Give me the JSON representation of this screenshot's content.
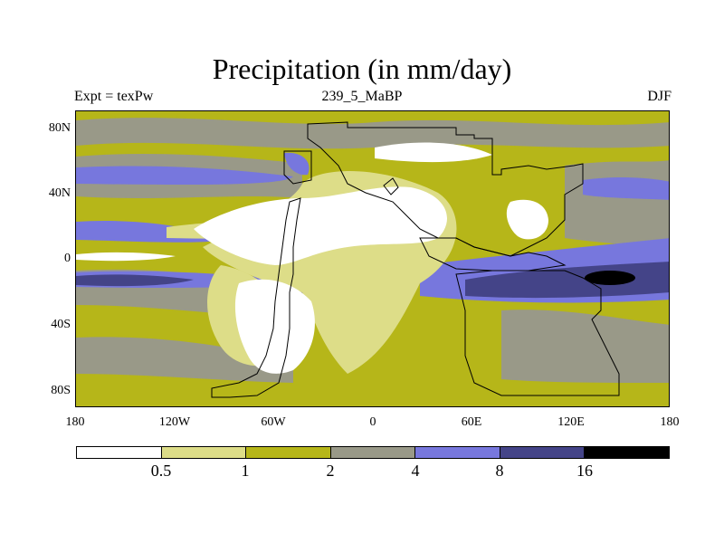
{
  "title": "Precipitation (in mm/day)",
  "subtitle_left": "Expt = texPw",
  "subtitle_center": "239_5_MaBP",
  "subtitle_right": "DJF",
  "map": {
    "projection": "cylindrical-equidistant",
    "lon_range": [
      -180,
      180
    ],
    "lat_range": [
      -90,
      90
    ],
    "lat_labels": [
      "80N",
      "40N",
      "0",
      "40S",
      "80S"
    ],
    "lon_labels": [
      "180",
      "120W",
      "60W",
      "0",
      "60E",
      "120E",
      "180"
    ],
    "coastline_color": "#000000"
  },
  "colorbar": {
    "levels": [
      "0.5",
      "1",
      "2",
      "4",
      "8",
      "16"
    ],
    "colors": [
      "#ffffff",
      "#dddd88",
      "#b6b619",
      "#999988",
      "#7777dd",
      "#444488",
      "#000000"
    ]
  }
}
